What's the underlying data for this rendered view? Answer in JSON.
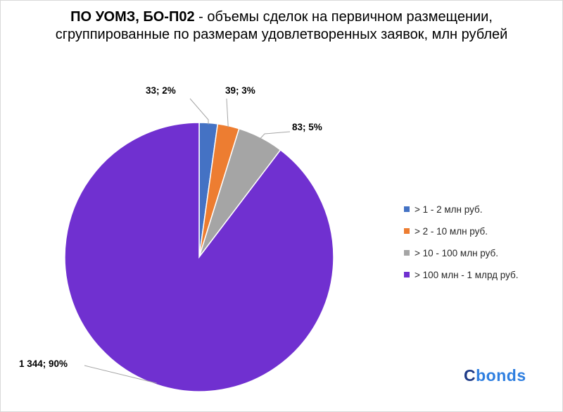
{
  "title": {
    "bold": "ПО УОМЗ, БО-П02",
    "rest": " - объемы сделок на первичном размещении, сгруппированные по размерам удовлетворенных заявок, млн рублей"
  },
  "logo": {
    "main": "C",
    "accent": "bonds"
  },
  "chart_data": {
    "type": "pie",
    "title": "ПО УОМЗ, БО-П02 - объемы сделок на первичном размещении, сгруппированные по размерам удовлетворенных заявок, млн рублей",
    "categories": [
      "> 1 - 2 млн руб.",
      "> 2 - 10 млн руб.",
      "> 10 - 100 млн руб.",
      "> 100 млн - 1 млрд руб."
    ],
    "values": [
      33,
      39,
      83,
      1344
    ],
    "data_labels": [
      "33; 2%",
      "39; 3%",
      "83; 5%",
      "1 344; 90%"
    ],
    "colors": [
      "#4472c4",
      "#ed7d31",
      "#a5a5a5",
      "#7030d0"
    ],
    "legend_position": "right"
  }
}
